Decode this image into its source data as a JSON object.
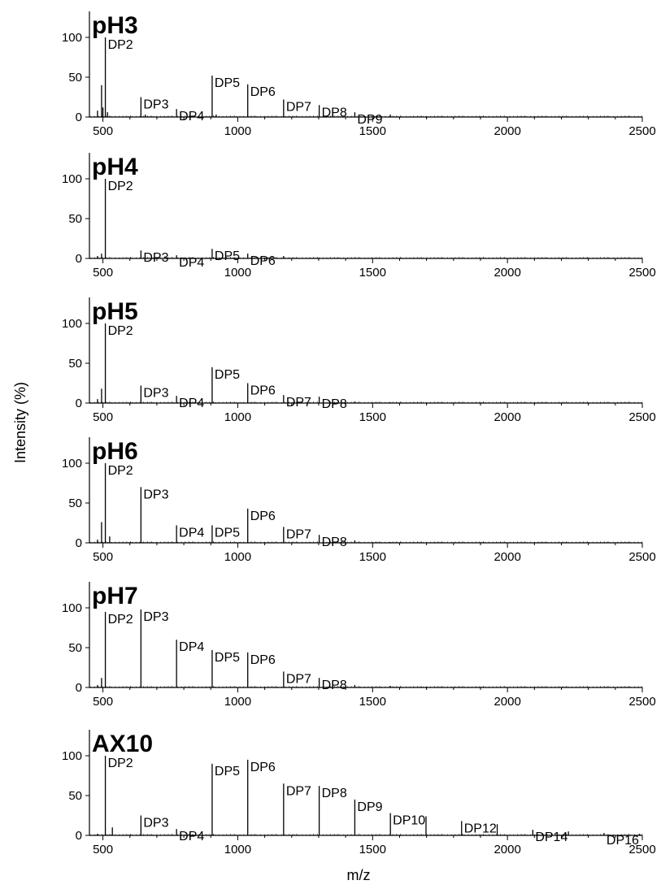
{
  "figure": {
    "ylabel": "Intensity (%)",
    "xlabel": "m/z"
  },
  "chart_data": [
    {
      "type": "line",
      "title": "pH3",
      "xlim": [
        450,
        2500
      ],
      "ylim": [
        0,
        100
      ],
      "xticks": [
        500,
        1000,
        1500,
        2000,
        2500
      ],
      "yticks": [
        0,
        50,
        100
      ],
      "peaks": [
        {
          "x": 480,
          "y": 8
        },
        {
          "x": 495,
          "y": 40
        },
        {
          "x": 500,
          "y": 12
        },
        {
          "x": 509,
          "y": 100
        },
        {
          "x": 517,
          "y": 6
        },
        {
          "x": 641,
          "y": 25
        },
        {
          "x": 657,
          "y": 3
        },
        {
          "x": 773,
          "y": 10
        },
        {
          "x": 905,
          "y": 52
        },
        {
          "x": 920,
          "y": 3
        },
        {
          "x": 1037,
          "y": 41
        },
        {
          "x": 1170,
          "y": 22
        },
        {
          "x": 1302,
          "y": 15
        },
        {
          "x": 1434,
          "y": 6
        },
        {
          "x": 1566,
          "y": 3
        },
        {
          "x": 1698,
          "y": 1
        }
      ],
      "annotations": [
        {
          "text": "DP2",
          "x": 509,
          "y": 100
        },
        {
          "text": "DP3",
          "x": 641,
          "y": 25
        },
        {
          "text": "DP4",
          "x": 773,
          "y": 10
        },
        {
          "text": "DP5",
          "x": 905,
          "y": 52
        },
        {
          "text": "DP6",
          "x": 1037,
          "y": 41
        },
        {
          "text": "DP7",
          "x": 1170,
          "y": 22
        },
        {
          "text": "DP8",
          "x": 1302,
          "y": 15
        },
        {
          "text": "DP9",
          "x": 1434,
          "y": 6
        }
      ]
    },
    {
      "type": "line",
      "title": "pH4",
      "xlim": [
        450,
        2500
      ],
      "ylim": [
        0,
        100
      ],
      "xticks": [
        500,
        1000,
        1500,
        2000,
        2500
      ],
      "yticks": [
        0,
        50,
        100
      ],
      "peaks": [
        {
          "x": 480,
          "y": 3
        },
        {
          "x": 495,
          "y": 6
        },
        {
          "x": 509,
          "y": 100
        },
        {
          "x": 641,
          "y": 10
        },
        {
          "x": 773,
          "y": 4
        },
        {
          "x": 905,
          "y": 12
        },
        {
          "x": 1037,
          "y": 6
        },
        {
          "x": 1170,
          "y": 3
        },
        {
          "x": 1302,
          "y": 1
        }
      ],
      "annotations": [
        {
          "text": "DP2",
          "x": 509,
          "y": 100
        },
        {
          "text": "DP3",
          "x": 641,
          "y": 10
        },
        {
          "text": "DP4",
          "x": 773,
          "y": 4
        },
        {
          "text": "DP5",
          "x": 905,
          "y": 12
        },
        {
          "text": "DP6",
          "x": 1037,
          "y": 6
        }
      ]
    },
    {
      "type": "line",
      "title": "pH5",
      "xlim": [
        450,
        2500
      ],
      "ylim": [
        0,
        100
      ],
      "xticks": [
        500,
        1000,
        1500,
        2000,
        2500
      ],
      "yticks": [
        0,
        50,
        100
      ],
      "peaks": [
        {
          "x": 480,
          "y": 5
        },
        {
          "x": 495,
          "y": 18
        },
        {
          "x": 509,
          "y": 100
        },
        {
          "x": 641,
          "y": 22
        },
        {
          "x": 773,
          "y": 9
        },
        {
          "x": 905,
          "y": 45
        },
        {
          "x": 1037,
          "y": 25
        },
        {
          "x": 1170,
          "y": 10
        },
        {
          "x": 1302,
          "y": 8
        },
        {
          "x": 1434,
          "y": 2
        },
        {
          "x": 1566,
          "y": 1
        }
      ],
      "annotations": [
        {
          "text": "DP2",
          "x": 509,
          "y": 100
        },
        {
          "text": "DP3",
          "x": 641,
          "y": 22
        },
        {
          "text": "DP4",
          "x": 773,
          "y": 9
        },
        {
          "text": "DP5",
          "x": 905,
          "y": 45
        },
        {
          "text": "DP6",
          "x": 1037,
          "y": 25
        },
        {
          "text": "DP7",
          "x": 1170,
          "y": 10
        },
        {
          "text": "DP8",
          "x": 1302,
          "y": 8
        }
      ]
    },
    {
      "type": "line",
      "title": "pH6",
      "xlim": [
        450,
        2500
      ],
      "ylim": [
        0,
        100
      ],
      "xticks": [
        500,
        1000,
        1500,
        2000,
        2500
      ],
      "yticks": [
        0,
        50,
        100
      ],
      "peaks": [
        {
          "x": 480,
          "y": 4
        },
        {
          "x": 495,
          "y": 26
        },
        {
          "x": 509,
          "y": 100
        },
        {
          "x": 525,
          "y": 8
        },
        {
          "x": 641,
          "y": 70
        },
        {
          "x": 773,
          "y": 22
        },
        {
          "x": 905,
          "y": 22
        },
        {
          "x": 1037,
          "y": 43
        },
        {
          "x": 1170,
          "y": 20
        },
        {
          "x": 1302,
          "y": 10
        },
        {
          "x": 1434,
          "y": 3
        },
        {
          "x": 1566,
          "y": 1
        }
      ],
      "annotations": [
        {
          "text": "DP2",
          "x": 509,
          "y": 100
        },
        {
          "text": "DP3",
          "x": 641,
          "y": 70
        },
        {
          "text": "DP4",
          "x": 773,
          "y": 22
        },
        {
          "text": "DP5",
          "x": 905,
          "y": 22
        },
        {
          "text": "DP6",
          "x": 1037,
          "y": 43
        },
        {
          "text": "DP7",
          "x": 1170,
          "y": 20
        },
        {
          "text": "DP8",
          "x": 1302,
          "y": 10
        }
      ]
    },
    {
      "type": "line",
      "title": "pH7",
      "xlim": [
        450,
        2500
      ],
      "ylim": [
        0,
        100
      ],
      "xticks": [
        500,
        1000,
        1500,
        2000,
        2500
      ],
      "yticks": [
        0,
        50,
        100
      ],
      "peaks": [
        {
          "x": 480,
          "y": 3
        },
        {
          "x": 495,
          "y": 12
        },
        {
          "x": 509,
          "y": 95
        },
        {
          "x": 641,
          "y": 98
        },
        {
          "x": 773,
          "y": 60
        },
        {
          "x": 905,
          "y": 47
        },
        {
          "x": 1037,
          "y": 44
        },
        {
          "x": 1170,
          "y": 20
        },
        {
          "x": 1302,
          "y": 12
        },
        {
          "x": 1434,
          "y": 3
        },
        {
          "x": 1566,
          "y": 2
        },
        {
          "x": 1698,
          "y": 1
        }
      ],
      "annotations": [
        {
          "text": "DP2",
          "x": 509,
          "y": 95
        },
        {
          "text": "DP3",
          "x": 641,
          "y": 98
        },
        {
          "text": "DP4",
          "x": 773,
          "y": 60
        },
        {
          "text": "DP5",
          "x": 905,
          "y": 47
        },
        {
          "text": "DP6",
          "x": 1037,
          "y": 44
        },
        {
          "text": "DP7",
          "x": 1170,
          "y": 20
        },
        {
          "text": "DP8",
          "x": 1302,
          "y": 12
        }
      ]
    },
    {
      "type": "line",
      "title": "AX10",
      "xlim": [
        450,
        2500
      ],
      "ylim": [
        0,
        100
      ],
      "xticks": [
        500,
        1000,
        1500,
        2000,
        2500
      ],
      "yticks": [
        0,
        50,
        100
      ],
      "peaks": [
        {
          "x": 480,
          "y": 2
        },
        {
          "x": 509,
          "y": 100
        },
        {
          "x": 535,
          "y": 10
        },
        {
          "x": 641,
          "y": 25
        },
        {
          "x": 773,
          "y": 8
        },
        {
          "x": 905,
          "y": 90
        },
        {
          "x": 1037,
          "y": 95
        },
        {
          "x": 1170,
          "y": 65
        },
        {
          "x": 1302,
          "y": 62
        },
        {
          "x": 1434,
          "y": 45
        },
        {
          "x": 1566,
          "y": 28
        },
        {
          "x": 1698,
          "y": 24
        },
        {
          "x": 1830,
          "y": 18
        },
        {
          "x": 1962,
          "y": 14
        },
        {
          "x": 2094,
          "y": 7
        },
        {
          "x": 2226,
          "y": 5
        },
        {
          "x": 2358,
          "y": 3
        },
        {
          "x": 2490,
          "y": 2
        }
      ],
      "annotations": [
        {
          "text": "DP2",
          "x": 509,
          "y": 100
        },
        {
          "text": "DP3",
          "x": 641,
          "y": 25
        },
        {
          "text": "DP4",
          "x": 773,
          "y": 8
        },
        {
          "text": "DP5",
          "x": 905,
          "y": 90
        },
        {
          "text": "DP6",
          "x": 1037,
          "y": 95
        },
        {
          "text": "DP7",
          "x": 1170,
          "y": 65
        },
        {
          "text": "DP8",
          "x": 1302,
          "y": 62
        },
        {
          "text": "DP9",
          "x": 1434,
          "y": 45
        },
        {
          "text": "DP10",
          "x": 1566,
          "y": 28
        },
        {
          "text": "DP12",
          "x": 1830,
          "y": 18
        },
        {
          "text": "DP14",
          "x": 2094,
          "y": 7
        },
        {
          "text": "DP16",
          "x": 2358,
          "y": 3
        }
      ]
    }
  ]
}
